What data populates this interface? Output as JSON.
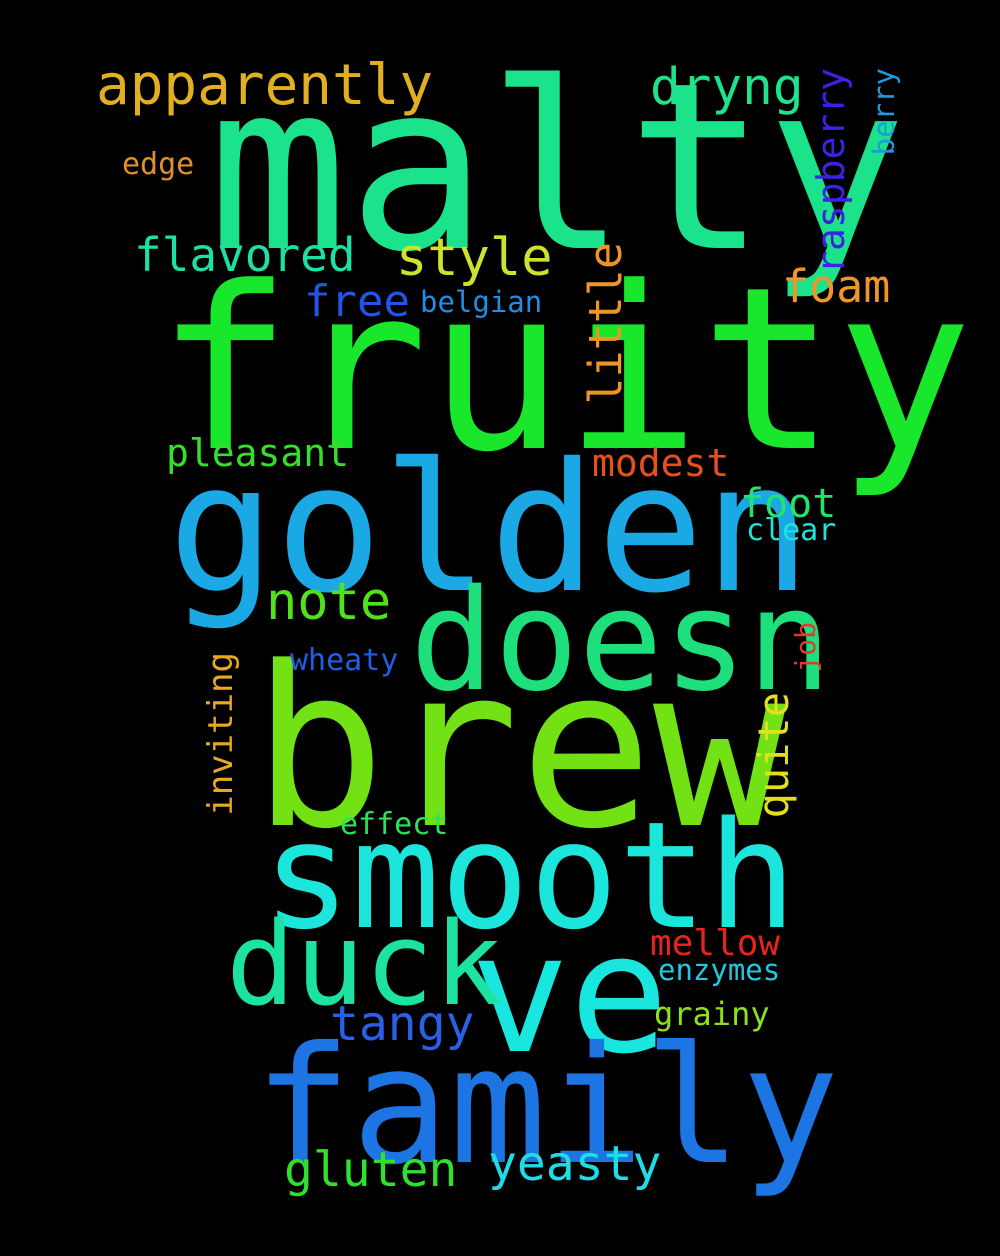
{
  "words": [
    {
      "text": "malty",
      "color": "#1be38c"
    },
    {
      "text": "fruity",
      "color": "#18e72c"
    },
    {
      "text": "golden",
      "color": "#1ba9e6"
    },
    {
      "text": "doesn",
      "color": "#1ddf7b"
    },
    {
      "text": "brew",
      "color": "#72e214"
    },
    {
      "text": "smooth",
      "color": "#1ce5dc"
    },
    {
      "text": "ve",
      "color": "#19e6de"
    },
    {
      "text": "duck",
      "color": "#1ce3a2"
    },
    {
      "text": "family",
      "color": "#1d74e3"
    },
    {
      "text": "apparently",
      "color": "#e2ae22"
    },
    {
      "text": "dryng",
      "color": "#20e28a"
    },
    {
      "text": "flavored",
      "color": "#1de0a4"
    },
    {
      "text": "style",
      "color": "#cfe22b"
    },
    {
      "text": "free",
      "color": "#2255e6"
    },
    {
      "text": "belgian",
      "color": "#1f8ee5"
    },
    {
      "text": "foam",
      "color": "#ef9627"
    },
    {
      "text": "little",
      "color": "#ee9525"
    },
    {
      "text": "raspberry",
      "color": "#3b22e6"
    },
    {
      "text": "berry",
      "color": "#1f99e0"
    },
    {
      "text": "edge",
      "color": "#e2902b"
    },
    {
      "text": "pleasant",
      "color": "#35e02b"
    },
    {
      "text": "modest",
      "color": "#e6501e"
    },
    {
      "text": "foot",
      "color": "#23e26d"
    },
    {
      "text": "clear",
      "color": "#1fe3d6"
    },
    {
      "text": "note",
      "color": "#52e21a"
    },
    {
      "text": "job",
      "color": "#e3382a"
    },
    {
      "text": "wheaty",
      "color": "#1f5fe6"
    },
    {
      "text": "inviting",
      "color": "#e7a922"
    },
    {
      "text": "quite",
      "color": "#e3df1e"
    },
    {
      "text": "effect",
      "color": "#2be355"
    },
    {
      "text": "mellow",
      "color": "#e8231f"
    },
    {
      "text": "enzymes",
      "color": "#21c8e4"
    },
    {
      "text": "grainy",
      "color": "#8fe01c"
    },
    {
      "text": "tangy",
      "color": "#2a60e5"
    },
    {
      "text": "gluten",
      "color": "#2fe02d"
    },
    {
      "text": "yeasty",
      "color": "#1fdde6"
    }
  ]
}
